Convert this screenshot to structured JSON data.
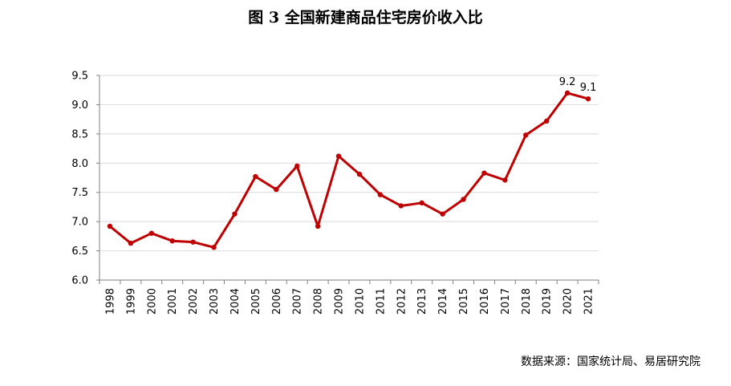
{
  "title": "图 3 全国新建商品住宅房价收入比",
  "source": "数据来源：国家统计局、易居研究院",
  "colors": {
    "line": "#c00000",
    "grid": "#d9d9d9",
    "axis": "#7f7f7f"
  },
  "chart_data": {
    "type": "line",
    "title": "图 3 全国新建商品住宅房价收入比",
    "categories": [
      "1998",
      "1999",
      "2000",
      "2001",
      "2002",
      "2003",
      "2004",
      "2005",
      "2006",
      "2007",
      "2008",
      "2009",
      "2010",
      "2011",
      "2012",
      "2013",
      "2014",
      "2015",
      "2016",
      "2017",
      "2018",
      "2019",
      "2020",
      "2021"
    ],
    "series": [
      {
        "values": [
          6.92,
          6.63,
          6.8,
          6.67,
          6.65,
          6.56,
          7.13,
          7.77,
          7.55,
          7.95,
          6.92,
          8.12,
          7.81,
          7.46,
          7.27,
          7.32,
          7.13,
          7.38,
          7.83,
          7.71,
          8.48,
          8.72,
          9.2,
          9.1
        ]
      }
    ],
    "ylim": [
      6.0,
      9.5
    ],
    "yticks": [
      "6.0",
      "6.5",
      "7.0",
      "7.5",
      "8.0",
      "8.5",
      "9.0",
      "9.5"
    ],
    "data_labels": [
      {
        "index": 22,
        "text": "9.2"
      },
      {
        "index": 23,
        "text": "9.1"
      }
    ],
    "xlabel": "",
    "ylabel": "",
    "grid": true
  }
}
